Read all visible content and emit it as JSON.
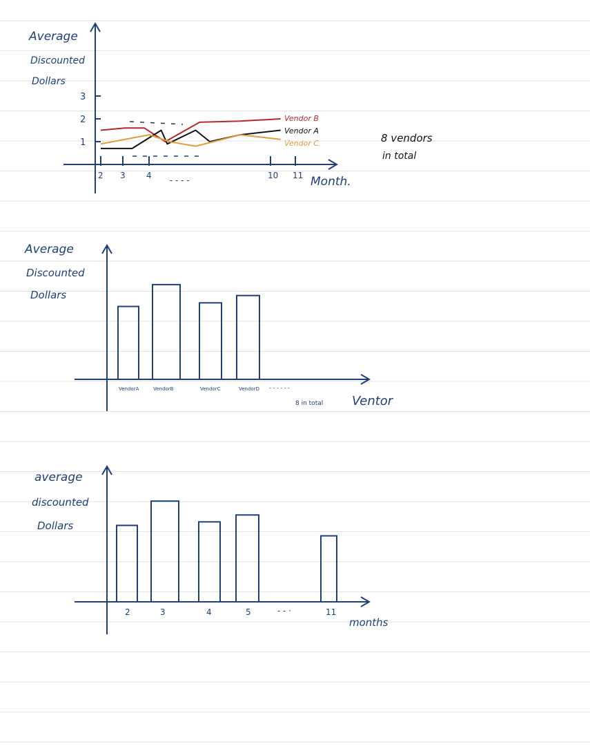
{
  "colors": {
    "ink": "#1d3f7a",
    "paper_line": "#e2e2e2",
    "vendor_b": "#b8282a",
    "vendor_a": "#111111",
    "vendor_c": "#e69b3a"
  },
  "chart_data": [
    {
      "type": "line",
      "ylabel": [
        "Average",
        "Discounted",
        "Dollars"
      ],
      "xlabel": "Month.",
      "x_ticks": [
        "2",
        "3",
        "4",
        "10",
        "11"
      ],
      "x_ellipsis": "- - - -",
      "y_ticks": [
        "1",
        "2",
        "3"
      ],
      "ylim": [
        0,
        3.5
      ],
      "x_positions": [
        2,
        3,
        4,
        5,
        6,
        7,
        8,
        9,
        10,
        11
      ],
      "series": [
        {
          "name": "Vendor B",
          "color": "#b8282a",
          "points": [
            [
              2,
              1.5
            ],
            [
              3,
              1.6
            ],
            [
              3.8,
              1.6
            ],
            [
              4.8,
              1.0
            ],
            [
              6.5,
              1.85
            ],
            [
              8.5,
              1.9
            ],
            [
              10.5,
              2.0
            ]
          ]
        },
        {
          "name": "Vendor A",
          "color": "#111111",
          "points": [
            [
              2,
              0.7
            ],
            [
              3.3,
              0.7
            ],
            [
              4.6,
              1.5
            ],
            [
              4.9,
              0.9
            ],
            [
              6.3,
              1.5
            ],
            [
              7.0,
              1.0
            ],
            [
              8.5,
              1.3
            ],
            [
              10.5,
              1.5
            ]
          ]
        },
        {
          "name": "Vendor C",
          "color": "#e69b3a",
          "points": [
            [
              2,
              0.9
            ],
            [
              4.0,
              1.3
            ],
            [
              5.0,
              1.0
            ],
            [
              6.3,
              0.8
            ],
            [
              8.5,
              1.3
            ],
            [
              9.5,
              1.2
            ],
            [
              10.5,
              1.1
            ]
          ]
        }
      ],
      "annotation": [
        "8 vendors",
        "in total"
      ]
    },
    {
      "type": "bar",
      "ylabel": [
        "Average",
        "Discounted",
        "Dollars"
      ],
      "xlabel": "Ventor",
      "categories": [
        "VendorA",
        "VendorB",
        "VendorC",
        "VendorD"
      ],
      "values": [
        2.0,
        2.6,
        2.1,
        2.3
      ],
      "ylim": [
        0,
        3.3
      ],
      "x_ellipsis": "- - - - - -",
      "annotation": "8 in total"
    },
    {
      "type": "bar",
      "ylabel": [
        "average",
        "discounted",
        "Dollars"
      ],
      "xlabel": "months",
      "categories": [
        "2",
        "3",
        "4",
        "5",
        "11"
      ],
      "values": [
        2.2,
        2.9,
        2.3,
        2.5,
        1.9
      ],
      "ylim": [
        0,
        3.5
      ],
      "x_ellipsis": "- - ·"
    }
  ]
}
